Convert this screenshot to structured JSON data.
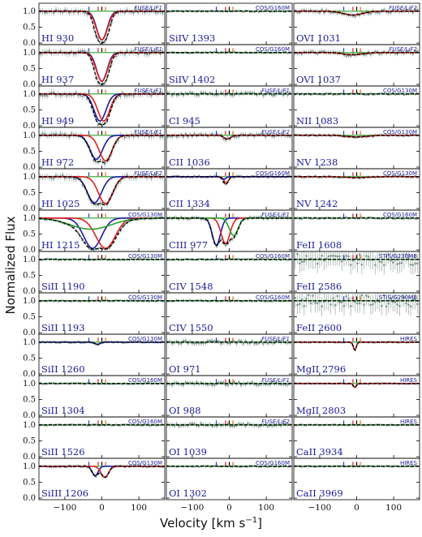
{
  "chart_data": {
    "type": "line",
    "ylabel": "Normalized Flux",
    "xlabel": "Velocity [km s",
    "xlabel_sup": "−1",
    "xlabel_close": "]",
    "xlim": [
      -170,
      170
    ],
    "ylim": [
      -0.05,
      1.25
    ],
    "x_ticks": [
      -100,
      0,
      100
    ],
    "x_tick_labels": [
      "−100",
      "0",
      "100"
    ],
    "y_ticks": [
      0.0,
      0.5,
      1.0
    ],
    "y_tick_labels": [
      "0.0",
      "0.5",
      "1.0"
    ],
    "component_markers": [
      {
        "velocity": -35,
        "color": "#1f3fd0"
      },
      {
        "velocity": -10,
        "color": "#d0202a"
      },
      {
        "velocity": 10,
        "color": "#e07010"
      },
      {
        "velocity": 0,
        "color": "#000000"
      }
    ],
    "component_colors": {
      "blue": "#1a1aa6",
      "red": "#e02020",
      "green": "#2aa02a",
      "model": "#000000",
      "data": "#7f9a90"
    },
    "panels": [
      {
        "col": 0,
        "row": 0,
        "ion": "HI 930",
        "instrument": "FUSE/LiF1",
        "fuse": true,
        "comps": [
          {
            "c": "blue",
            "v": 0,
            "d": 0.9,
            "w": 14
          },
          {
            "c": "red",
            "v": 0,
            "d": 0.9,
            "w": 15
          }
        ],
        "model": {
          "v": 0,
          "d": 0.94,
          "w": 15
        },
        "err": 0.1
      },
      {
        "col": 0,
        "row": 1,
        "ion": "HI 937",
        "instrument": "FUSE/LiF1",
        "fuse": true,
        "comps": [
          {
            "c": "blue",
            "v": 0,
            "d": 0.9,
            "w": 14
          },
          {
            "c": "red",
            "v": 0,
            "d": 0.9,
            "w": 15
          }
        ],
        "model": {
          "v": 0,
          "d": 0.94,
          "w": 15
        },
        "err": 0.1
      },
      {
        "col": 0,
        "row": 2,
        "ion": "HI 949",
        "instrument": "FUSE/LiF1",
        "fuse": true,
        "comps": [
          {
            "c": "blue",
            "v": -5,
            "d": 0.85,
            "w": 16
          },
          {
            "c": "red",
            "v": 5,
            "d": 0.85,
            "w": 16
          }
        ],
        "model": {
          "v": 0,
          "d": 0.96,
          "w": 18
        },
        "err": 0.1
      },
      {
        "col": 0,
        "row": 3,
        "ion": "HI 972",
        "instrument": "FUSE/LiF1",
        "fuse": true,
        "comps": [
          {
            "c": "blue",
            "v": -15,
            "d": 0.75,
            "w": 17
          },
          {
            "c": "red",
            "v": 10,
            "d": 0.8,
            "w": 17
          }
        ],
        "model": {
          "v": 0,
          "d": 0.97,
          "w": 22
        },
        "err": 0.1
      },
      {
        "col": 0,
        "row": 4,
        "ion": "HI 1025",
        "instrument": "FUSE/LiF2",
        "fuse": true,
        "comps": [
          {
            "c": "blue",
            "v": -20,
            "d": 0.82,
            "w": 19
          },
          {
            "c": "red",
            "v": 10,
            "d": 0.85,
            "w": 19
          }
        ],
        "model": {
          "v": 0,
          "d": 0.97,
          "w": 26
        },
        "err": 0.1
      },
      {
        "col": 0,
        "row": 5,
        "ion": "HI 1215",
        "instrument": "COS/G130M",
        "fuse": false,
        "comps": [
          {
            "c": "blue",
            "v": -25,
            "d": 0.95,
            "w": 24
          },
          {
            "c": "red",
            "v": 10,
            "d": 0.95,
            "w": 26
          },
          {
            "c": "green",
            "v": -30,
            "d": 0.35,
            "w": 55
          }
        ],
        "model": {
          "v": -5,
          "d": 0.99,
          "w": 36
        },
        "err": 0.04
      },
      {
        "col": 0,
        "row": 6,
        "ion": "SiII 1190",
        "instrument": "COS/G130M",
        "fuse": false,
        "comps": [],
        "model": {
          "v": 0,
          "d": 0.0,
          "w": 10
        },
        "err": 0.03
      },
      {
        "col": 0,
        "row": 7,
        "ion": "SiII 1193",
        "instrument": "COS/G130M",
        "fuse": false,
        "comps": [],
        "model": {
          "v": 0,
          "d": 0.0,
          "w": 10
        },
        "err": 0.03
      },
      {
        "col": 0,
        "row": 8,
        "ion": "SiII 1260",
        "instrument": "COS/G130M",
        "fuse": false,
        "comps": [
          {
            "c": "blue",
            "v": -12,
            "d": 0.07,
            "w": 7
          }
        ],
        "model": {
          "v": -10,
          "d": 0.08,
          "w": 8
        },
        "err": 0.03
      },
      {
        "col": 0,
        "row": 9,
        "ion": "SiII 1304",
        "instrument": "COS/G160M",
        "fuse": false,
        "comps": [],
        "model": {
          "v": 0,
          "d": 0.0,
          "w": 10
        },
        "err": 0.03
      },
      {
        "col": 0,
        "row": 10,
        "ion": "SiII 1526",
        "instrument": "COS/G160M",
        "fuse": false,
        "comps": [],
        "model": {
          "v": 0,
          "d": 0.0,
          "w": 10
        },
        "err": 0.03
      },
      {
        "col": 0,
        "row": 11,
        "ion": "SiIII 1206",
        "instrument": "COS/G130M",
        "fuse": false,
        "comps": [
          {
            "c": "blue",
            "v": -18,
            "d": 0.3,
            "w": 8
          },
          {
            "c": "red",
            "v": 8,
            "d": 0.35,
            "w": 10
          }
        ],
        "model": {
          "v": -2,
          "d": 0.45,
          "w": 14
        },
        "err": 0.04
      },
      {
        "col": 1,
        "row": 0,
        "ion": "SiIV 1393",
        "instrument": "COS/G160M",
        "fuse": false,
        "comps": [],
        "model": {
          "v": 0,
          "d": 0.0,
          "w": 10
        },
        "err": 0.03
      },
      {
        "col": 1,
        "row": 1,
        "ion": "SiIV 1402",
        "instrument": "COS/G160M",
        "fuse": false,
        "comps": [],
        "model": {
          "v": 0,
          "d": 0.0,
          "w": 10
        },
        "err": 0.03
      },
      {
        "col": 1,
        "row": 2,
        "ion": "CI 945",
        "instrument": "FUSE/LiF1",
        "fuse": true,
        "comps": [],
        "model": {
          "v": 0,
          "d": 0.0,
          "w": 10
        },
        "err": 0.08
      },
      {
        "col": 1,
        "row": 3,
        "ion": "CII 1036",
        "instrument": "FUSE/LiF2",
        "fuse": true,
        "comps": [
          {
            "c": "red",
            "v": -5,
            "d": 0.12,
            "w": 9
          }
        ],
        "model": {
          "v": -5,
          "d": 0.13,
          "w": 9
        },
        "err": 0.08
      },
      {
        "col": 1,
        "row": 4,
        "ion": "CII 1334",
        "instrument": "COS/G160M",
        "fuse": false,
        "comps": [
          {
            "c": "red",
            "v": -8,
            "d": 0.2,
            "w": 6
          },
          {
            "c": "blue",
            "v": -15,
            "d": 0.08,
            "w": 6
          }
        ],
        "model": {
          "v": -10,
          "d": 0.22,
          "w": 7
        },
        "err": 0.04
      },
      {
        "col": 1,
        "row": 5,
        "ion": "CIII 977",
        "instrument": "FUSE/LiF1",
        "fuse": true,
        "comps": [
          {
            "c": "blue",
            "v": -35,
            "d": 0.85,
            "w": 11
          },
          {
            "c": "red",
            "v": -10,
            "d": 0.8,
            "w": 12
          },
          {
            "c": "green",
            "v": 12,
            "d": 0.55,
            "w": 12
          }
        ],
        "model": {
          "v": -15,
          "d": 0.92,
          "w": 22
        },
        "err": 0.06
      },
      {
        "col": 1,
        "row": 6,
        "ion": "CIV 1548",
        "instrument": "COS/G160M",
        "fuse": false,
        "comps": [],
        "model": {
          "v": 0,
          "d": 0.0,
          "w": 10
        },
        "err": 0.03
      },
      {
        "col": 1,
        "row": 7,
        "ion": "CIV 1550",
        "instrument": "COS/G160M",
        "fuse": false,
        "comps": [],
        "model": {
          "v": 0,
          "d": 0.0,
          "w": 10
        },
        "err": 0.03
      },
      {
        "col": 1,
        "row": 8,
        "ion": "OI 971",
        "instrument": "FUSE/LiF1",
        "fuse": true,
        "comps": [],
        "model": {
          "v": 0,
          "d": 0.0,
          "w": 10
        },
        "err": 0.08
      },
      {
        "col": 1,
        "row": 9,
        "ion": "OI 988",
        "instrument": "FUSE/LiF1",
        "fuse": true,
        "comps": [],
        "model": {
          "v": 0,
          "d": 0.0,
          "w": 10
        },
        "err": 0.08
      },
      {
        "col": 1,
        "row": 10,
        "ion": "OI 1039",
        "instrument": "FUSE/LiF2",
        "fuse": true,
        "comps": [],
        "model": {
          "v": 0,
          "d": 0.0,
          "w": 10
        },
        "err": 0.08
      },
      {
        "col": 1,
        "row": 11,
        "ion": "OI 1302",
        "instrument": "COS/G160M",
        "fuse": false,
        "comps": [],
        "model": {
          "v": 0,
          "d": 0.0,
          "w": 10
        },
        "err": 0.03
      },
      {
        "col": 2,
        "row": 0,
        "ion": "OVI 1031",
        "instrument": "FUSE/LiF2",
        "fuse": true,
        "comps": [
          {
            "c": "red",
            "v": -10,
            "d": 0.12,
            "w": 26
          }
        ],
        "model": {
          "v": -10,
          "d": 0.12,
          "w": 26
        },
        "err": 0.08
      },
      {
        "col": 2,
        "row": 1,
        "ion": "OVI 1037",
        "instrument": "FUSE/LiF2",
        "fuse": true,
        "comps": [
          {
            "c": "red",
            "v": -10,
            "d": 0.07,
            "w": 26
          }
        ],
        "model": {
          "v": -10,
          "d": 0.07,
          "w": 26
        },
        "err": 0.08
      },
      {
        "col": 2,
        "row": 2,
        "ion": "NII 1083",
        "instrument": "COS/G130M",
        "fuse": false,
        "comps": [],
        "model": {
          "v": 0,
          "d": 0.0,
          "w": 10
        },
        "err": 0.04
      },
      {
        "col": 2,
        "row": 3,
        "ion": "NV 1238",
        "instrument": "COS/G130M",
        "fuse": false,
        "comps": [
          {
            "c": "red",
            "v": 0,
            "d": 0.05,
            "w": 30
          }
        ],
        "model": {
          "v": 0,
          "d": 0.05,
          "w": 30
        },
        "err": 0.04
      },
      {
        "col": 2,
        "row": 4,
        "ion": "NV 1242",
        "instrument": "COS/G130M",
        "fuse": false,
        "comps": [
          {
            "c": "red",
            "v": 0,
            "d": 0.03,
            "w": 30
          }
        ],
        "model": {
          "v": 0,
          "d": 0.03,
          "w": 30
        },
        "err": 0.04
      },
      {
        "col": 2,
        "row": 5,
        "ion": "FeII 1608",
        "instrument": "COS/G160M",
        "fuse": false,
        "comps": [],
        "model": {
          "v": 0,
          "d": 0.0,
          "w": 10
        },
        "err": 0.04
      },
      {
        "col": 2,
        "row": 6,
        "ion": "FeII 2586",
        "instrument": "STIS/G230MB",
        "fuse": false,
        "comps": [],
        "model": {
          "v": 0,
          "d": 0.0,
          "w": 10
        },
        "err": 0.3
      },
      {
        "col": 2,
        "row": 7,
        "ion": "FeII 2600",
        "instrument": "STIS/G230MB",
        "fuse": false,
        "comps": [],
        "model": {
          "v": 0,
          "d": 0.0,
          "w": 10
        },
        "err": 0.3
      },
      {
        "col": 2,
        "row": 8,
        "ion": "MgII 2796",
        "instrument": "HIRES",
        "fuse": false,
        "comps": [
          {
            "c": "red",
            "v": -5,
            "d": 0.25,
            "w": 4
          }
        ],
        "model": {
          "v": -5,
          "d": 0.27,
          "w": 4
        },
        "err": 0.02
      },
      {
        "col": 2,
        "row": 9,
        "ion": "MgII 2803",
        "instrument": "HIRES",
        "fuse": false,
        "comps": [
          {
            "c": "red",
            "v": -5,
            "d": 0.12,
            "w": 4
          }
        ],
        "model": {
          "v": -5,
          "d": 0.13,
          "w": 4
        },
        "err": 0.02
      },
      {
        "col": 2,
        "row": 10,
        "ion": "CaII 3934",
        "instrument": "HIRES",
        "fuse": false,
        "comps": [],
        "model": {
          "v": 0,
          "d": 0.0,
          "w": 10
        },
        "err": 0.02
      },
      {
        "col": 2,
        "row": 11,
        "ion": "CaII 3969",
        "instrument": "HIRES",
        "fuse": false,
        "comps": [],
        "model": {
          "v": 0,
          "d": 0.0,
          "w": 10
        },
        "err": 0.02
      }
    ]
  }
}
